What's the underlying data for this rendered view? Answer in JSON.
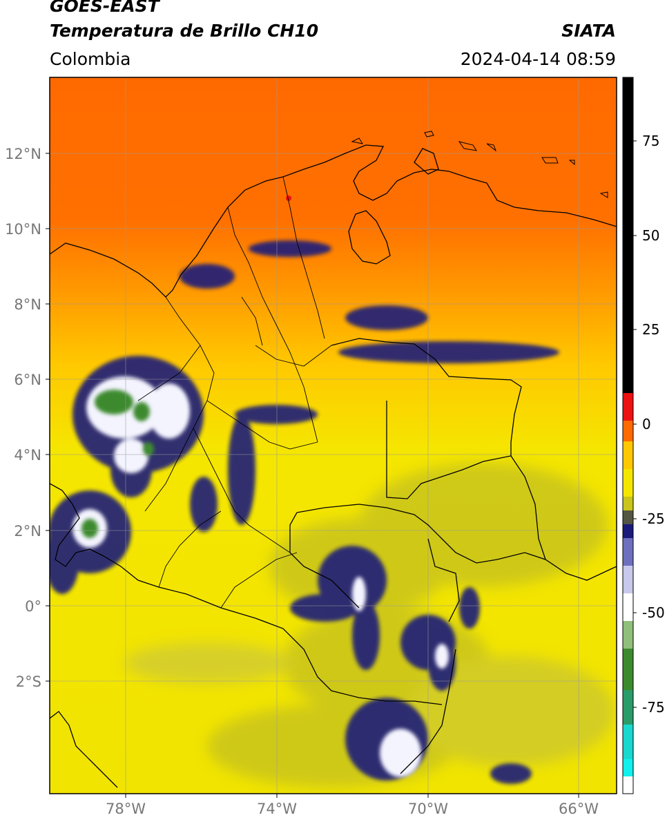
{
  "header": {
    "satellite": "GOES-EAST",
    "product": "Temperatura de Brillo CH10",
    "agency": "SIATA",
    "region": "Colombia",
    "datetime": "2024-04-14 08:59"
  },
  "map": {
    "lat_ticks": [
      "12°N",
      "10°N",
      "8°N",
      "6°N",
      "4°N",
      "2°N",
      "0°",
      "2°S"
    ],
    "lon_ticks": [
      "78°W",
      "74°W",
      "70°W",
      "66°W"
    ],
    "extent": {
      "lon_min": -80,
      "lon_max": -65,
      "lat_min": -5,
      "lat_max": 14
    }
  },
  "colorbar": {
    "tick_labels": [
      "75",
      "50",
      "25",
      "0",
      "-25",
      "-50",
      "-75"
    ],
    "tick_values": [
      75,
      50,
      25,
      0,
      -25,
      -50,
      -75
    ],
    "range": [
      -100,
      90
    ]
  },
  "colors": {
    "warm_orange": "#ff6a00",
    "yellow": "#f5e600",
    "olive": "#c9c41a",
    "navy": "#1a1a7a",
    "white": "#ffffff",
    "green": "#3c8a2e",
    "cyan": "#18d8d0",
    "red": "#ee1111",
    "black": "#000000"
  }
}
